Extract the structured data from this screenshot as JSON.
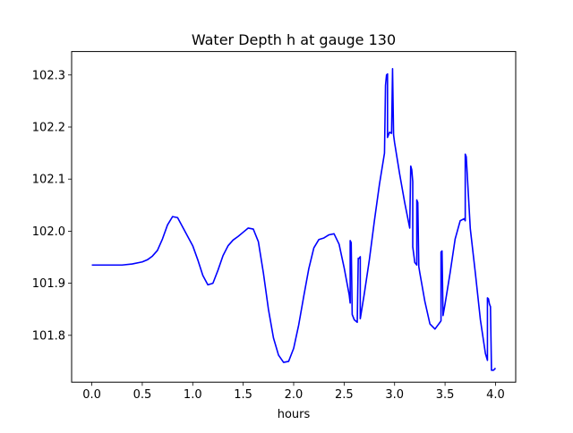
{
  "chart_data": {
    "type": "line",
    "title": "Water Depth h at gauge 130",
    "xlabel": "hours",
    "ylabel": "",
    "xlim": [
      -0.2,
      4.2
    ],
    "ylim": [
      101.71,
      102.345
    ],
    "grid": false,
    "xticks": [
      0.0,
      0.5,
      1.0,
      1.5,
      2.0,
      2.5,
      3.0,
      3.5,
      4.0
    ],
    "xtick_labels": [
      "0.0",
      "0.5",
      "1.0",
      "1.5",
      "2.0",
      "2.5",
      "3.0",
      "3.5",
      "4.0"
    ],
    "yticks": [
      101.8,
      101.9,
      102.0,
      102.1,
      102.2,
      102.3
    ],
    "ytick_labels": [
      "101.8",
      "101.9",
      "102.0",
      "102.1",
      "102.2",
      "102.3"
    ],
    "series": [
      {
        "color": "#0000ff",
        "x": [
          0.0,
          0.1,
          0.2,
          0.3,
          0.4,
          0.5,
          0.55,
          0.6,
          0.65,
          0.7,
          0.75,
          0.8,
          0.85,
          0.9,
          0.95,
          1.0,
          1.05,
          1.1,
          1.15,
          1.2,
          1.25,
          1.3,
          1.35,
          1.4,
          1.45,
          1.5,
          1.55,
          1.6,
          1.65,
          1.7,
          1.75,
          1.8,
          1.85,
          1.9,
          1.95,
          2.0,
          2.05,
          2.1,
          2.15,
          2.2,
          2.25,
          2.3,
          2.35,
          2.4,
          2.45,
          2.5,
          2.55,
          2.56,
          2.56,
          2.57,
          2.58,
          2.6,
          2.63,
          2.64,
          2.65,
          2.66,
          2.66,
          2.7,
          2.75,
          2.8,
          2.85,
          2.9,
          2.91,
          2.92,
          2.93,
          2.93,
          2.95,
          2.97,
          2.98,
          2.98,
          2.99,
          3.0,
          3.05,
          3.1,
          3.15,
          3.16,
          3.17,
          3.18,
          3.18,
          3.2,
          3.22,
          3.22,
          3.23,
          3.24,
          3.25,
          3.3,
          3.35,
          3.4,
          3.45,
          3.46,
          3.46,
          3.47,
          3.48,
          3.5,
          3.55,
          3.6,
          3.65,
          3.69,
          3.7,
          3.7,
          3.71,
          3.75,
          3.8,
          3.85,
          3.9,
          3.92,
          3.92,
          3.93,
          3.94,
          3.95,
          3.96,
          3.97,
          3.98,
          3.99,
          4.0
        ],
        "y": [
          101.935,
          101.935,
          101.935,
          101.935,
          101.937,
          101.941,
          101.945,
          101.952,
          101.963,
          101.985,
          102.012,
          102.028,
          102.026,
          102.008,
          101.99,
          101.972,
          101.945,
          101.915,
          101.897,
          101.9,
          101.925,
          101.953,
          101.972,
          101.983,
          101.99,
          101.998,
          102.006,
          102.004,
          101.98,
          101.92,
          101.85,
          101.795,
          101.762,
          101.748,
          101.75,
          101.775,
          101.82,
          101.875,
          101.928,
          101.968,
          101.984,
          101.987,
          101.993,
          101.995,
          101.975,
          101.93,
          101.878,
          101.862,
          101.982,
          101.978,
          101.84,
          101.83,
          101.825,
          101.948,
          101.948,
          101.951,
          101.832,
          101.88,
          101.945,
          102.02,
          102.09,
          102.15,
          102.28,
          102.3,
          102.302,
          102.18,
          102.19,
          102.188,
          102.312,
          102.308,
          102.185,
          102.17,
          102.11,
          102.055,
          102.006,
          102.125,
          102.118,
          102.095,
          101.97,
          101.94,
          101.935,
          102.06,
          102.055,
          101.932,
          101.92,
          101.865,
          101.822,
          101.812,
          101.825,
          101.828,
          101.96,
          101.962,
          101.838,
          101.86,
          101.92,
          101.985,
          102.02,
          102.024,
          102.02,
          102.148,
          102.143,
          102.005,
          101.92,
          101.83,
          101.765,
          101.752,
          101.872,
          101.87,
          101.86,
          101.855,
          101.733,
          101.733,
          101.733,
          101.735,
          101.737
        ]
      }
    ]
  }
}
